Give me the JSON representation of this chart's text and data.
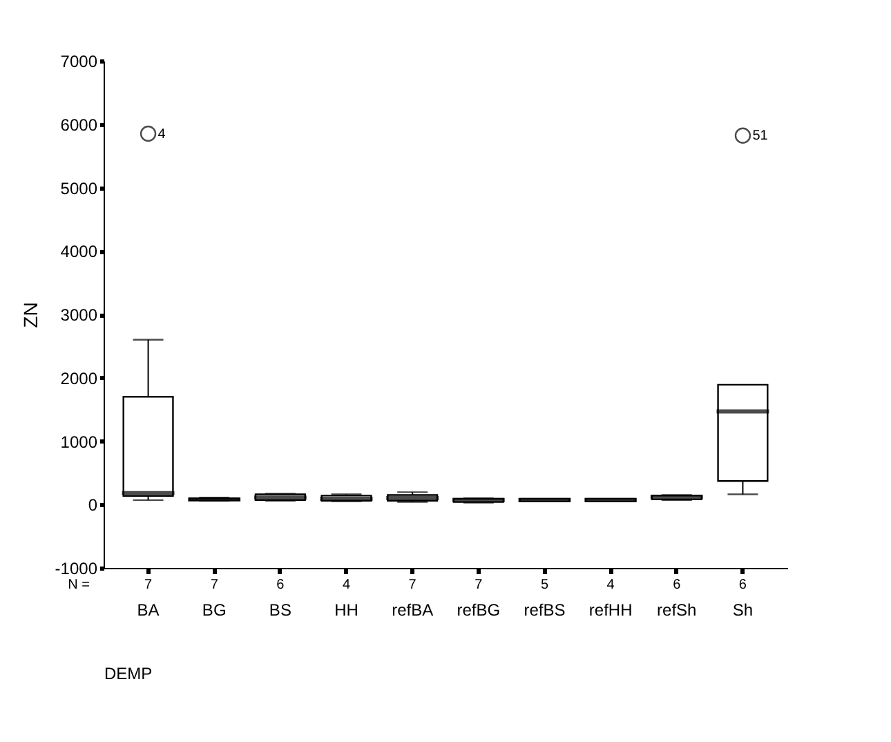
{
  "chart_data": {
    "type": "box",
    "xlabel": "DEMP",
    "ylabel": "ZN",
    "categories": [
      "BA",
      "BG",
      "BS",
      "HH",
      "refBA",
      "refBG",
      "refBS",
      "refHH",
      "refSh",
      "Sh"
    ],
    "boxes": [
      {
        "low": 70,
        "q1": 135,
        "median": 180,
        "q3": 1700,
        "high": 2600,
        "outliers": [
          5850
        ]
      },
      {
        "low": 60,
        "q1": 70,
        "median": 80,
        "q3": 100,
        "high": 110
      },
      {
        "low": 60,
        "q1": 70,
        "median": 110,
        "q3": 160,
        "high": 170
      },
      {
        "low": 50,
        "q1": 60,
        "median": 90,
        "q3": 140,
        "high": 160
      },
      {
        "low": 40,
        "q1": 60,
        "median": 100,
        "q3": 150,
        "high": 195
      },
      {
        "low": 30,
        "q1": 40,
        "median": 70,
        "q3": 90,
        "high": 100
      },
      {
        "low": 50,
        "q1": 50,
        "median": 70,
        "q3": 90,
        "high": 90
      },
      {
        "low": 50,
        "q1": 50,
        "median": 70,
        "q3": 90,
        "high": 90
      },
      {
        "low": 70,
        "q1": 80,
        "median": 120,
        "q3": 140,
        "high": 150
      },
      {
        "low": 160,
        "q1": 370,
        "median": 1470,
        "q3": 1890,
        "high": 1890,
        "outliers": [
          5820
        ]
      }
    ],
    "ylim": [
      -1000,
      7000
    ],
    "yticks": [
      -1000,
      0,
      1000,
      2000,
      3000,
      4000,
      5000,
      6000,
      7000
    ],
    "grid": false,
    "annotations": [
      "4",
      "51",
      "N =",
      "7",
      "7",
      "6",
      "4",
      "7",
      "7",
      "5",
      "4",
      "6",
      "6"
    ]
  }
}
